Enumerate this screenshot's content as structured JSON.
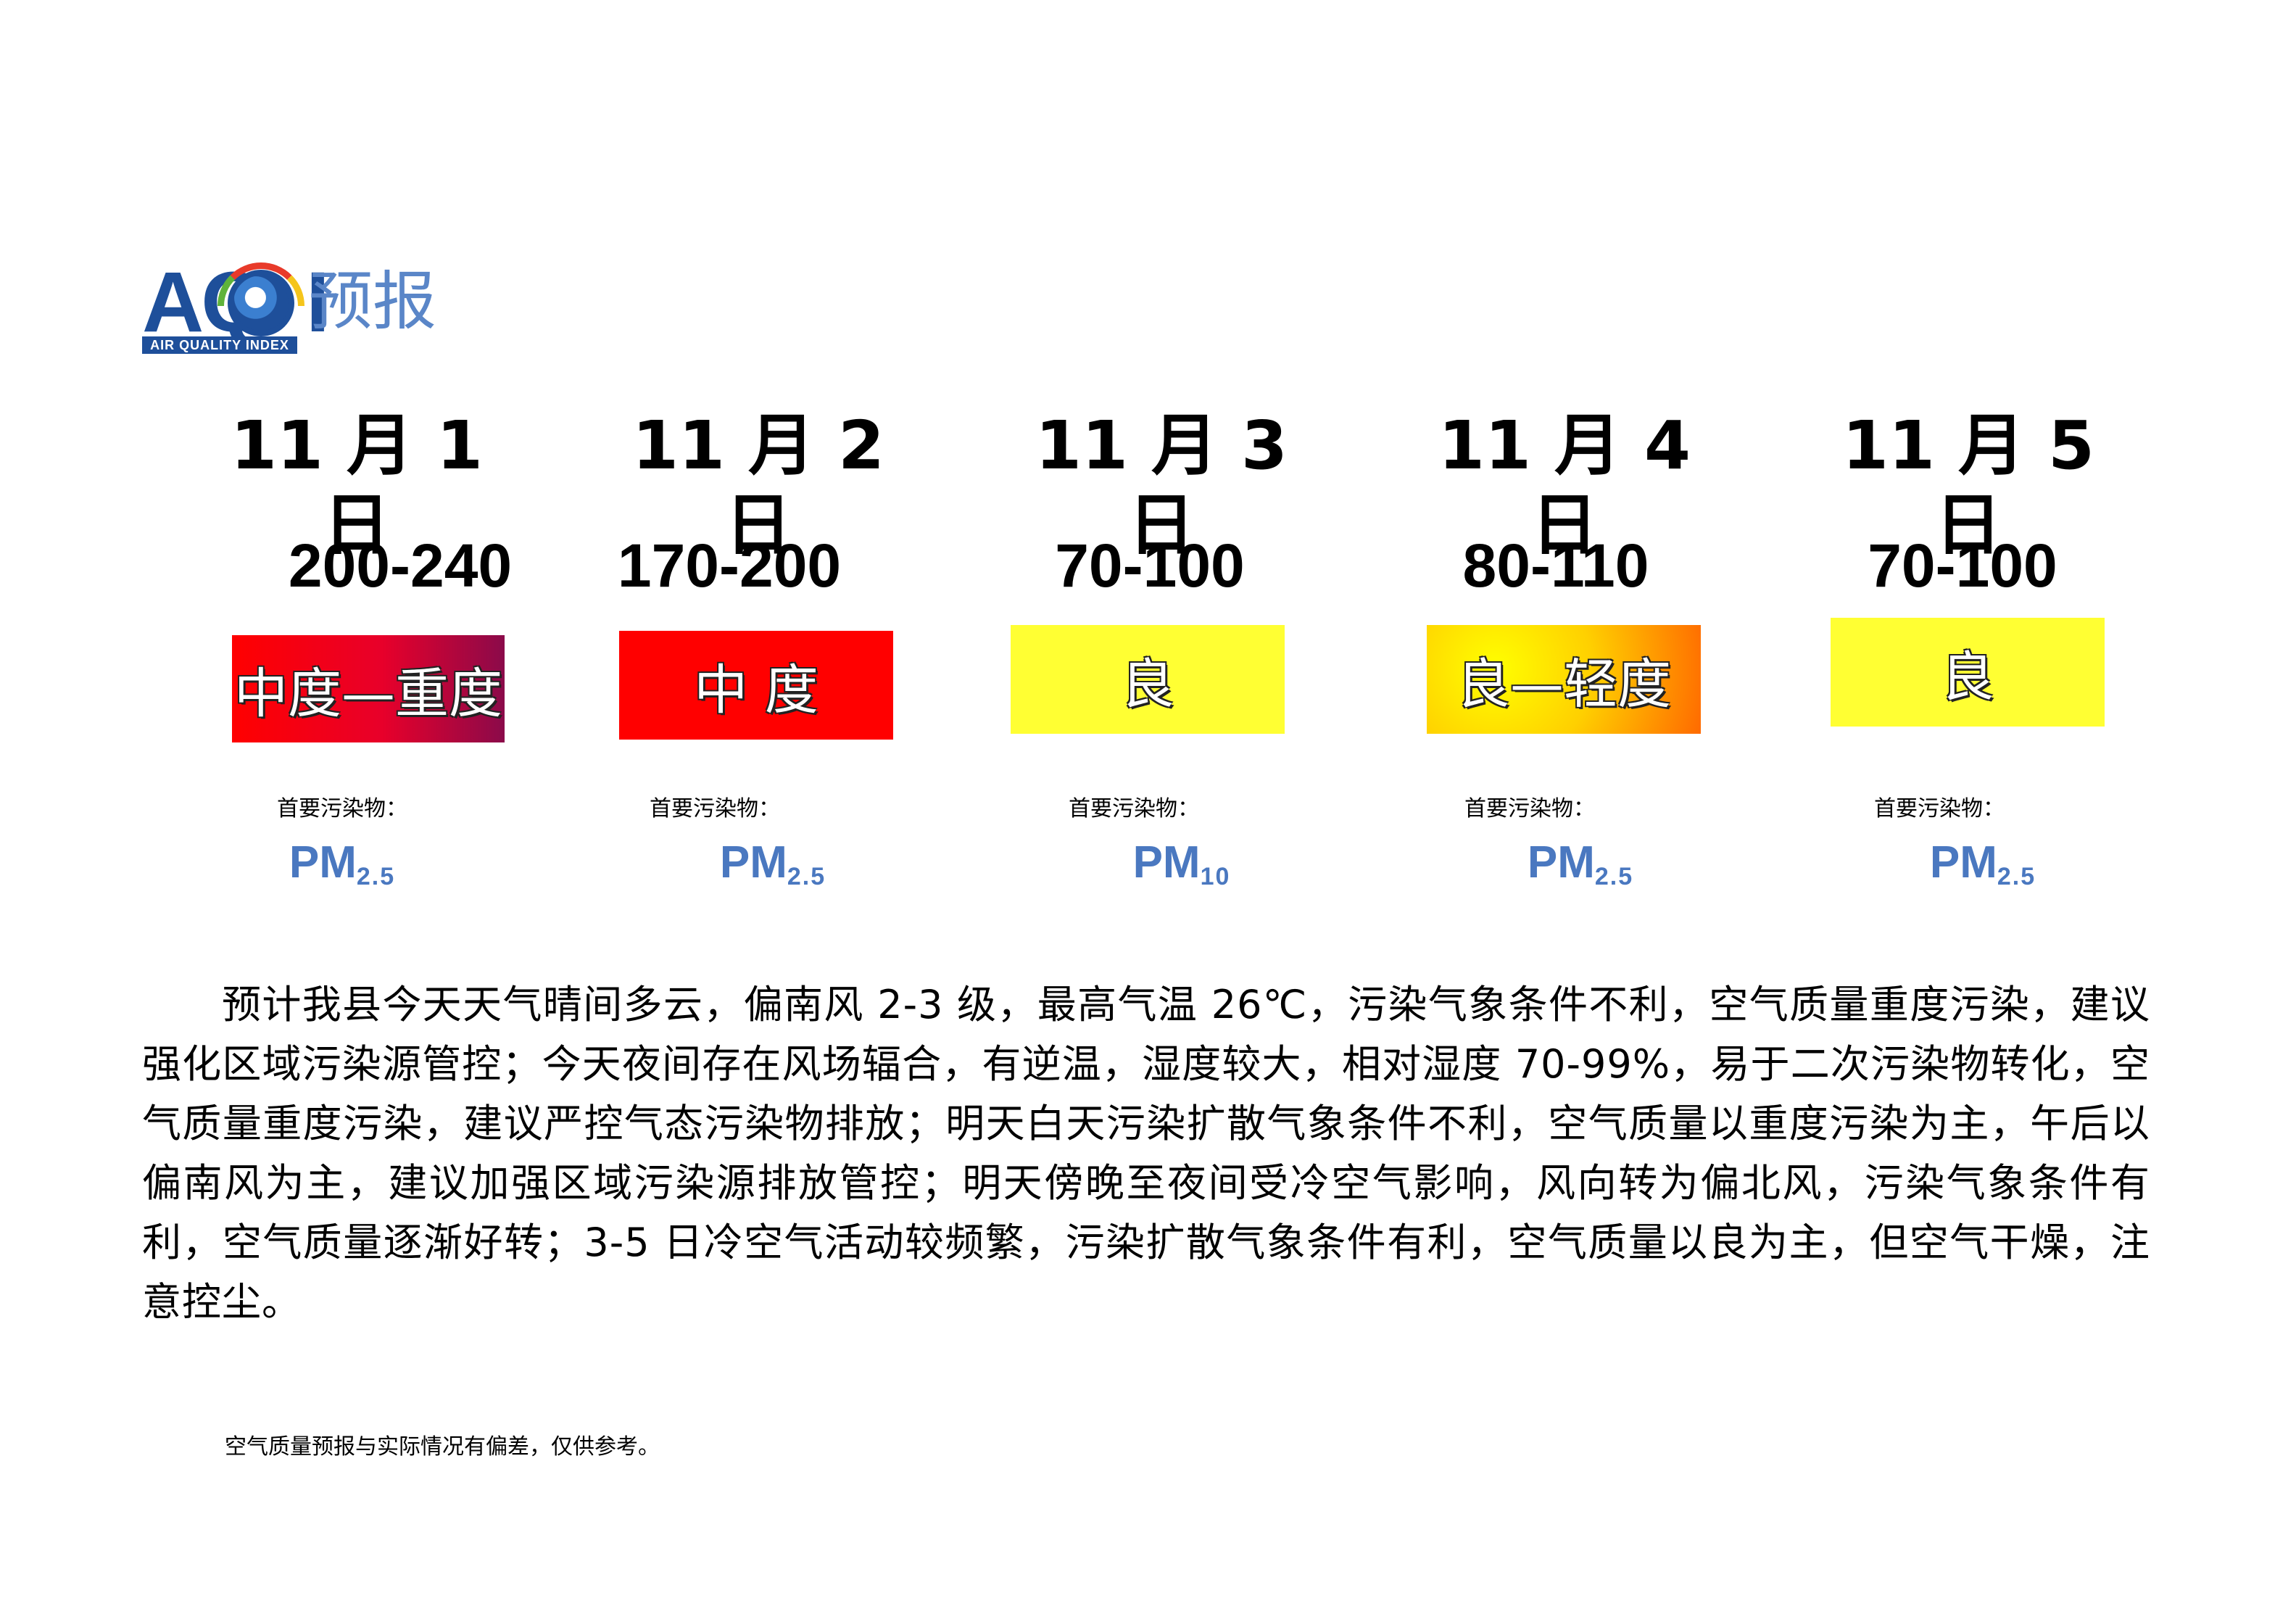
{
  "header": {
    "logo_text": "AQI",
    "logo_subtext": "AIR QUALITY INDEX",
    "title": "预报"
  },
  "forecast": [
    {
      "date": "11 月 1 日",
      "range": "200-240",
      "level": "中度—重度",
      "primary_label": "首要污染物：",
      "pollutant": "PM",
      "pollutant_sub": "2.5"
    },
    {
      "date": "11 月 2 日",
      "range": "170-200",
      "level": "中  度",
      "primary_label": "首要污染物：",
      "pollutant": "PM",
      "pollutant_sub": "2.5"
    },
    {
      "date": "11 月 3 日",
      "range": "70-100",
      "level": "良",
      "primary_label": "首要污染物：",
      "pollutant": "PM",
      "pollutant_sub": "10"
    },
    {
      "date": "11 月 4 日",
      "range": "80-110",
      "level": "良—轻度",
      "primary_label": "首要污染物：",
      "pollutant": "PM",
      "pollutant_sub": "2.5"
    },
    {
      "date": "11 月 5 日",
      "range": "70-100",
      "level": "良",
      "primary_label": "首要污染物：",
      "pollutant": "PM",
      "pollutant_sub": "2.5"
    }
  ],
  "colors": {
    "moderate_heavy": [
      "#ff0000",
      "#8b0a4a"
    ],
    "moderate": "#ff0000",
    "good": "#ffff33",
    "good_light": [
      "#ffff00",
      "#ff6a00"
    ],
    "pm_text": "#4a78c0"
  },
  "description": "预计我县今天天气晴间多云，偏南风 2-3 级，最高气温 26℃，污染气象条件不利，空气质量重度污染，建议强化区域污染源管控；今天夜间存在风场辐合，有逆温，湿度较大，相对湿度 70-99%，易于二次污染物转化，空气质量重度污染，建议严控气态污染物排放；明天白天污染扩散气象条件不利，空气质量以重度污染为主，午后以偏南风为主，建议加强区域污染源排放管控；明天傍晚至夜间受冷空气影响，风向转为偏北风，污染气象条件有利，空气质量逐渐好转；3-5 日冷空气活动较频繁，污染扩散气象条件有利，空气质量以良为主，但空气干燥，注意控尘。",
  "footnote": "空气质量预报与实际情况有偏差，仅供参考。"
}
